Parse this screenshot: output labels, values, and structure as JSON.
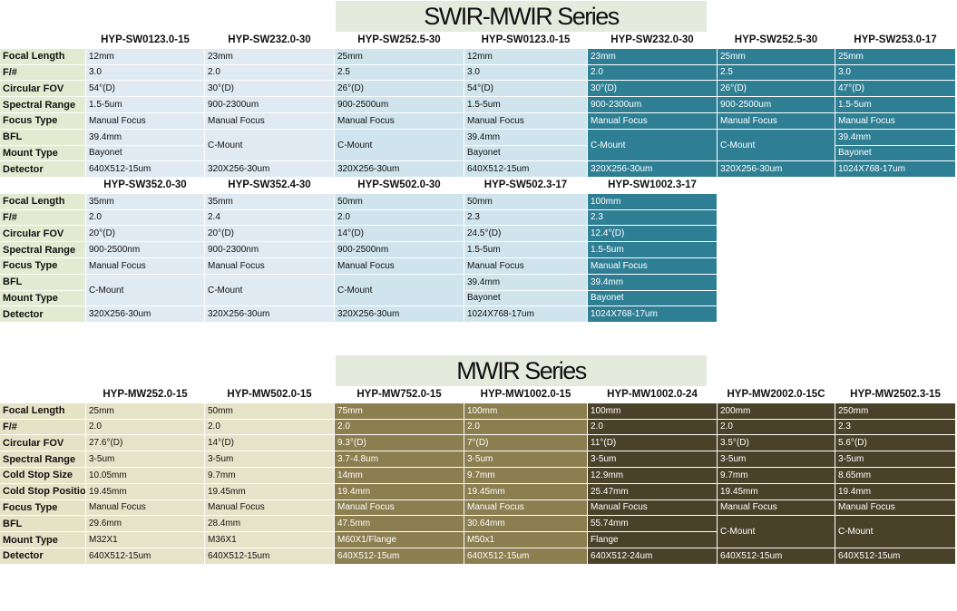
{
  "swir_title": "SWIR-MWIR Series",
  "mwir_title": "MWIR Series",
  "labels": {
    "focal": "Focal Length",
    "fnum": "F/#",
    "fov": "Circular FOV",
    "spectral": "Spectral Range",
    "focus_type": "Focus Type",
    "bfl": "BFL",
    "mount": "Mount Type",
    "detector": "Detector",
    "cold_size": "Cold Stop Size",
    "cold_pos": "Cold Stop Positio"
  },
  "swir1": [
    {
      "model": "HYP-SW0123.0-15",
      "focal": "12mm",
      "fnum": "3.0",
      "fov": "54°(D)",
      "spectral": "1.5-5um",
      "focus": "Manual Focus",
      "bfl": "39.4mm",
      "mount": "Bayonet",
      "detector": "640X512-15um"
    },
    {
      "model": "HYP-SW232.0-30",
      "focal": "23mm",
      "fnum": "2.0",
      "fov": "30°(D)",
      "spectral": "900-2300um",
      "focus": "Manual Focus",
      "bfl_mount": "C-Mount",
      "detector": "320X256-30um"
    },
    {
      "model": "HYP-SW252.5-30",
      "focal": "25mm",
      "fnum": "2.5",
      "fov": "26°(D)",
      "spectral": "900-2500um",
      "focus": "Manual Focus",
      "bfl_mount": "C-Mount",
      "detector": "320X256-30um"
    },
    {
      "model": "HYP-SW0123.0-15",
      "focal": "12mm",
      "fnum": "3.0",
      "fov": "54°(D)",
      "spectral": "1.5-5um",
      "focus": "Manual Focus",
      "bfl": "39.4mm",
      "mount": "Bayonet",
      "detector": "640X512-15um"
    },
    {
      "model": "HYP-SW232.0-30",
      "focal": "23mm",
      "fnum": "2.0",
      "fov": "30°(D)",
      "spectral": "900-2300um",
      "focus": "Manual Focus",
      "bfl_mount": "C-Mount",
      "detector": "320X256-30um"
    },
    {
      "model": "HYP-SW252.5-30",
      "focal": "25mm",
      "fnum": "2.5",
      "fov": "26°(D)",
      "spectral": "900-2500um",
      "focus": "Manual Focus",
      "bfl_mount": "C-Mount",
      "detector": "320X256-30um"
    },
    {
      "model": "HYP-SW253.0-17",
      "focal": "25mm",
      "fnum": "3.0",
      "fov": "47°(D)",
      "spectral": "1.5-5um",
      "focus": "Manual Focus",
      "bfl": "39.4mm",
      "mount": "Bayonet",
      "detector": "1024X768-17um"
    }
  ],
  "swir2": [
    {
      "model": "HYP-SW352.0-30",
      "focal": "35mm",
      "fnum": "2.0",
      "fov": "20°(D)",
      "spectral": "900-2500nm",
      "focus": "Manual Focus",
      "bfl_mount": "C-Mount",
      "detector": "320X256-30um"
    },
    {
      "model": "HYP-SW352.4-30",
      "focal": "35mm",
      "fnum": "2.4",
      "fov": "20°(D)",
      "spectral": "900-2300nm",
      "focus": "Manual Focus",
      "bfl_mount": "C-Mount",
      "detector": "320X256-30um"
    },
    {
      "model": "HYP-SW502.0-30",
      "focal": "50mm",
      "fnum": "2.0",
      "fov": "14°(D)",
      "spectral": "900-2500nm",
      "focus": "Manual Focus",
      "bfl_mount": "C-Mount",
      "detector": "320X256-30um"
    },
    {
      "model": "HYP-SW502.3-17",
      "focal": "50mm",
      "fnum": "2.3",
      "fov": "24.5°(D)",
      "spectral": "1.5-5um",
      "focus": "Manual Focus",
      "bfl": "39.4mm",
      "mount": "Bayonet",
      "detector": "1024X768-17um"
    },
    {
      "model": "HYP-SW1002.3-17",
      "focal": "100mm",
      "fnum": "2.3",
      "fov": "12.4°(D)",
      "spectral": "1.5-5um",
      "focus": "Manual Focus",
      "bfl": "39.4mm",
      "mount": "Bayonet",
      "detector": "1024X768-17um"
    }
  ],
  "mwir": [
    {
      "model": "HYP-MW252.0-15",
      "focal": "25mm",
      "fnum": "2.0",
      "fov": "27.6°(D)",
      "spectral": "3-5um",
      "cold_size": "10.05mm",
      "cold_pos": "19.45mm",
      "focus": "Manual Focus",
      "bfl": "29.6mm",
      "mount": "M32X1",
      "detector": "640X512-15um"
    },
    {
      "model": "HYP-MW502.0-15",
      "focal": "50mm",
      "fnum": "2.0",
      "fov": "14°(D)",
      "spectral": "3-5um",
      "cold_size": "9.7mm",
      "cold_pos": "19.45mm",
      "focus": "Manual Focus",
      "bfl": "28.4mm",
      "mount": "M36X1",
      "detector": "640X512-15um"
    },
    {
      "model": "HYP-MW752.0-15",
      "focal": "75mm",
      "fnum": "2.0",
      "fov": "9.3°(D)",
      "spectral": "3.7-4.8um",
      "cold_size": "14mm",
      "cold_pos": "19.4mm",
      "focus": "Manual Focus",
      "bfl": "47.5mm",
      "mount": "M60X1/Flange",
      "detector": "640X512-15um"
    },
    {
      "model": "HYP-MW1002.0-15",
      "focal": "100mm",
      "fnum": "2.0",
      "fov": "7°(D)",
      "spectral": "3-5um",
      "cold_size": "9.7mm",
      "cold_pos": "19.45mm",
      "focus": "Manual Focus",
      "bfl": "30.64mm",
      "mount": "M50x1",
      "detector": "640X512-15um"
    },
    {
      "model": "HYP-MW1002.0-24",
      "focal": "100mm",
      "fnum": "2.0",
      "fov": "11°(D)",
      "spectral": "3-5um",
      "cold_size": "12.9mm",
      "cold_pos": "25.47mm",
      "focus": "Manual Focus",
      "bfl": "55.74mm",
      "mount": "Flange",
      "detector": "640X512-24um"
    },
    {
      "model": "HYP-MW2002.0-15C",
      "focal": "200mm",
      "fnum": "2.0",
      "fov": "3.5°(D)",
      "spectral": "3-5um",
      "cold_size": "9.7mm",
      "cold_pos": "19.45mm",
      "focus": "Manual Focus",
      "bfl_mount": "C-Mount",
      "detector": "640X512-15um"
    },
    {
      "model": "HYP-MW2502.3-15",
      "focal": "250mm",
      "fnum": "2.3",
      "fov": "5.6°(D)",
      "spectral": "3-5um",
      "cold_size": "8.65mm",
      "cold_pos": "19.4mm",
      "focus": "Manual Focus",
      "bfl_mount": "C-Mount",
      "detector": "640X512-15um"
    }
  ]
}
